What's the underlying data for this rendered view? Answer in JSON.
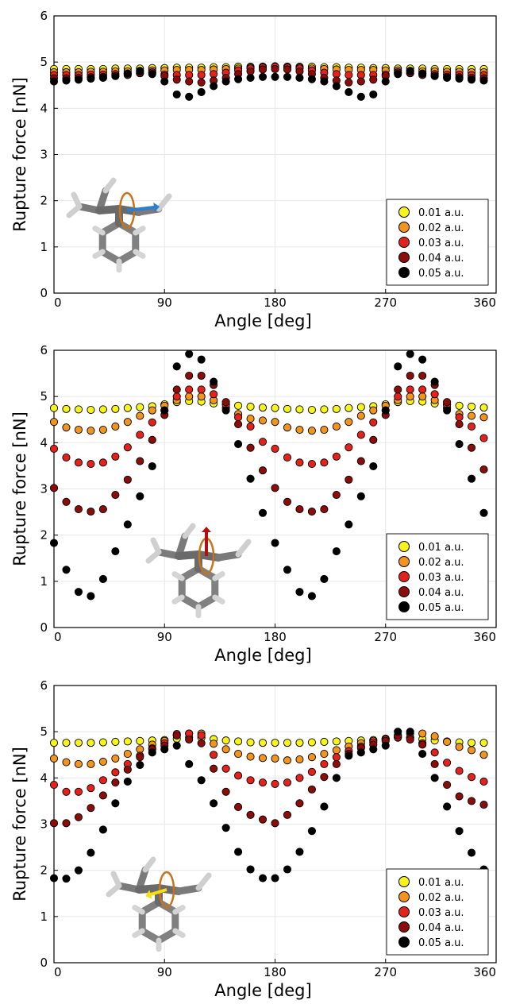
{
  "colors": {
    "0.01 a.u.": "#f7f41a",
    "0.02 a.u.": "#f3941c",
    "0.03 a.u.": "#e4221b",
    "0.04 a.u.": "#8c0c0a",
    "0.05 a.u.": "#000000",
    "axis": "#000000",
    "grid": "#e8e8e8"
  },
  "chart_data": [
    {
      "type": "scatter",
      "xlabel": "Angle [deg]",
      "ylabel": "Rupture force [nN]",
      "xlim": [
        0,
        360
      ],
      "ylim": [
        0,
        6
      ],
      "xticks": [
        "0",
        "90",
        "180",
        "270",
        "360"
      ],
      "yticks": [
        "0",
        "1",
        "2",
        "3",
        "4",
        "5",
        "6"
      ],
      "grid": true,
      "legend_position": "bottom-right",
      "inset": "molecule with rotation axis (blue arrow)",
      "x": [
        0,
        10,
        20,
        30,
        40,
        50,
        60,
        70,
        80,
        90,
        100,
        110,
        120,
        130,
        140,
        150,
        160,
        170,
        180,
        190,
        200,
        210,
        220,
        230,
        240,
        250,
        260,
        270,
        280,
        290,
        300,
        310,
        320,
        330,
        340,
        350
      ],
      "series": [
        {
          "name": "0.01 a.u.",
          "values": [
            4.85,
            4.85,
            4.85,
            4.85,
            4.85,
            4.86,
            4.86,
            4.86,
            4.87,
            4.87,
            4.88,
            4.88,
            4.88,
            4.89,
            4.89,
            4.9,
            4.9,
            4.9,
            4.9,
            4.9,
            4.9,
            4.9,
            4.89,
            4.89,
            4.88,
            4.88,
            4.87,
            4.87,
            4.86,
            4.86,
            4.86,
            4.85,
            4.85,
            4.85,
            4.85,
            4.85
          ]
        },
        {
          "name": "0.02 a.u.",
          "values": [
            4.78,
            4.78,
            4.78,
            4.79,
            4.79,
            4.8,
            4.8,
            4.81,
            4.82,
            4.82,
            4.83,
            4.83,
            4.83,
            4.84,
            4.85,
            4.86,
            4.88,
            4.9,
            4.91,
            4.9,
            4.88,
            4.86,
            4.85,
            4.84,
            4.83,
            4.83,
            4.83,
            4.82,
            4.82,
            4.81,
            4.8,
            4.8,
            4.79,
            4.79,
            4.78,
            4.78
          ]
        },
        {
          "name": "0.03 a.u.",
          "values": [
            4.72,
            4.72,
            4.72,
            4.73,
            4.73,
            4.74,
            4.75,
            4.76,
            4.77,
            4.73,
            4.72,
            4.72,
            4.72,
            4.74,
            4.77,
            4.82,
            4.86,
            4.88,
            4.9,
            4.88,
            4.86,
            4.82,
            4.77,
            4.74,
            4.72,
            4.72,
            4.72,
            4.73,
            4.77,
            4.76,
            4.75,
            4.74,
            4.73,
            4.73,
            4.72,
            4.72
          ]
        },
        {
          "name": "0.04 a.u.",
          "values": [
            4.65,
            4.65,
            4.66,
            4.67,
            4.68,
            4.7,
            4.72,
            4.76,
            4.78,
            4.7,
            4.62,
            4.58,
            4.56,
            4.6,
            4.66,
            4.74,
            4.8,
            4.84,
            4.85,
            4.84,
            4.8,
            4.74,
            4.66,
            4.6,
            4.56,
            4.58,
            4.62,
            4.7,
            4.78,
            4.76,
            4.72,
            4.7,
            4.68,
            4.67,
            4.66,
            4.65
          ]
        },
        {
          "name": "0.05 a.u.",
          "values": [
            4.58,
            4.6,
            4.62,
            4.64,
            4.66,
            4.7,
            4.75,
            4.8,
            4.74,
            4.58,
            4.3,
            4.25,
            4.35,
            4.48,
            4.58,
            4.63,
            4.66,
            4.68,
            4.68,
            4.68,
            4.66,
            4.63,
            4.58,
            4.48,
            4.35,
            4.25,
            4.3,
            4.58,
            4.74,
            4.8,
            4.75,
            4.7,
            4.66,
            4.64,
            4.62,
            4.6
          ]
        }
      ]
    },
    {
      "type": "scatter",
      "xlabel": "Angle [deg]",
      "ylabel": "Rupture force [nN]",
      "xlim": [
        0,
        360
      ],
      "ylim": [
        0,
        6
      ],
      "xticks": [
        "0",
        "90",
        "180",
        "270",
        "360"
      ],
      "yticks": [
        "0",
        "1",
        "2",
        "3",
        "4",
        "5",
        "6"
      ],
      "grid": true,
      "legend_position": "bottom-right",
      "inset": "molecule with rotation axis (red arrow)",
      "x": [
        0,
        10,
        20,
        30,
        40,
        50,
        60,
        70,
        80,
        90,
        100,
        110,
        120,
        130,
        140,
        150,
        160,
        170,
        180,
        190,
        200,
        210,
        220,
        230,
        240,
        250,
        260,
        270,
        280,
        290,
        300,
        310,
        320,
        330,
        340,
        350
      ],
      "series": [
        {
          "name": "0.01 a.u.",
          "values": [
            4.75,
            4.73,
            4.72,
            4.71,
            4.72,
            4.73,
            4.75,
            4.77,
            4.79,
            4.83,
            4.88,
            4.9,
            4.89,
            4.85,
            4.83,
            4.8,
            4.78,
            4.76,
            4.75,
            4.73,
            4.72,
            4.71,
            4.72,
            4.73,
            4.75,
            4.77,
            4.79,
            4.83,
            4.88,
            4.9,
            4.89,
            4.85,
            4.83,
            4.8,
            4.78,
            4.76
          ]
        },
        {
          "name": "0.02 a.u.",
          "values": [
            4.45,
            4.33,
            4.28,
            4.26,
            4.28,
            4.35,
            4.45,
            4.58,
            4.7,
            4.8,
            4.92,
            5.0,
            5.0,
            4.92,
            4.75,
            4.62,
            4.52,
            4.48,
            4.45,
            4.33,
            4.28,
            4.26,
            4.28,
            4.35,
            4.45,
            4.58,
            4.7,
            4.8,
            4.92,
            5.0,
            5.0,
            4.92,
            4.75,
            4.62,
            4.58,
            4.55
          ]
        },
        {
          "name": "0.03 a.u.",
          "values": [
            3.87,
            3.68,
            3.57,
            3.54,
            3.57,
            3.7,
            3.9,
            4.17,
            4.44,
            4.7,
            5.0,
            5.15,
            5.15,
            5.05,
            4.82,
            4.55,
            4.35,
            4.02,
            3.87,
            3.68,
            3.57,
            3.54,
            3.57,
            3.7,
            3.9,
            4.17,
            4.44,
            4.7,
            5.0,
            5.15,
            5.15,
            5.05,
            4.82,
            4.55,
            4.35,
            4.1
          ]
        },
        {
          "name": "0.04 a.u.",
          "values": [
            3.02,
            2.72,
            2.56,
            2.51,
            2.56,
            2.87,
            3.2,
            3.6,
            4.06,
            4.6,
            5.15,
            5.45,
            5.45,
            5.25,
            4.88,
            4.4,
            3.89,
            3.4,
            3.02,
            2.72,
            2.56,
            2.51,
            2.56,
            2.87,
            3.2,
            3.6,
            4.06,
            4.6,
            5.15,
            5.45,
            5.45,
            5.25,
            4.88,
            4.4,
            3.89,
            3.42
          ]
        },
        {
          "name": "0.05 a.u.",
          "values": [
            1.83,
            1.25,
            0.77,
            0.68,
            1.05,
            1.65,
            2.23,
            2.84,
            3.49,
            4.7,
            5.65,
            5.92,
            5.8,
            5.32,
            4.7,
            3.97,
            3.22,
            2.48,
            1.83,
            1.25,
            0.77,
            0.68,
            1.05,
            1.65,
            2.23,
            2.84,
            3.49,
            4.7,
            5.65,
            5.92,
            5.8,
            5.32,
            4.7,
            3.97,
            3.22,
            2.48
          ]
        }
      ]
    },
    {
      "type": "scatter",
      "xlabel": "Angle [deg]",
      "ylabel": "Rupture force [nN]",
      "xlim": [
        0,
        360
      ],
      "ylim": [
        0,
        6
      ],
      "xticks": [
        "0",
        "90",
        "180",
        "270",
        "360"
      ],
      "yticks": [
        "0",
        "1",
        "2",
        "3",
        "4",
        "5",
        "6"
      ],
      "grid": true,
      "legend_position": "bottom-right",
      "inset": "molecule with rotation axis (yellow arrow)",
      "x": [
        0,
        10,
        20,
        30,
        40,
        50,
        60,
        70,
        80,
        90,
        100,
        110,
        120,
        130,
        140,
        150,
        160,
        170,
        180,
        190,
        200,
        210,
        220,
        230,
        240,
        250,
        260,
        270,
        280,
        290,
        300,
        310,
        320,
        330,
        340,
        350
      ],
      "series": [
        {
          "name": "0.01 a.u.",
          "values": [
            4.76,
            4.76,
            4.76,
            4.76,
            4.77,
            4.78,
            4.79,
            4.8,
            4.81,
            4.82,
            4.85,
            4.87,
            4.87,
            4.84,
            4.81,
            4.79,
            4.77,
            4.76,
            4.76,
            4.76,
            4.76,
            4.77,
            4.78,
            4.79,
            4.8,
            4.81,
            4.82,
            4.85,
            4.87,
            4.87,
            4.84,
            4.81,
            4.79,
            4.77,
            4.76,
            4.76
          ]
        },
        {
          "name": "0.02 a.u.",
          "values": [
            4.42,
            4.34,
            4.3,
            4.3,
            4.35,
            4.42,
            4.52,
            4.62,
            4.72,
            4.8,
            4.92,
            4.96,
            4.96,
            4.74,
            4.62,
            4.52,
            4.46,
            4.43,
            4.42,
            4.38,
            4.4,
            4.45,
            4.52,
            4.6,
            4.68,
            4.75,
            4.8,
            4.85,
            4.92,
            4.96,
            4.96,
            4.9,
            4.78,
            4.67,
            4.6,
            4.5
          ]
        },
        {
          "name": "0.03 a.u.",
          "values": [
            3.85,
            3.7,
            3.7,
            3.78,
            3.95,
            4.12,
            4.3,
            4.48,
            4.64,
            4.75,
            4.95,
            4.96,
            4.92,
            4.5,
            4.2,
            4.05,
            3.95,
            3.9,
            3.87,
            3.9,
            4.0,
            4.13,
            4.3,
            4.45,
            4.58,
            4.68,
            4.77,
            4.83,
            4.88,
            4.87,
            4.75,
            4.55,
            4.33,
            4.15,
            4.02,
            3.92
          ]
        },
        {
          "name": "0.04 a.u.",
          "values": [
            3.02,
            3.02,
            3.15,
            3.35,
            3.62,
            3.9,
            4.18,
            4.45,
            4.62,
            4.7,
            4.92,
            4.83,
            4.75,
            4.2,
            3.7,
            3.37,
            3.2,
            3.1,
            3.02,
            3.2,
            3.45,
            3.75,
            4.02,
            4.3,
            4.52,
            4.65,
            4.72,
            4.8,
            4.92,
            4.83,
            4.72,
            4.3,
            3.85,
            3.6,
            3.5,
            3.42
          ]
        },
        {
          "name": "0.05 a.u.",
          "values": [
            1.83,
            1.82,
            2.0,
            2.38,
            2.88,
            3.45,
            3.92,
            4.28,
            4.55,
            4.62,
            4.7,
            4.3,
            3.95,
            3.45,
            2.92,
            2.4,
            2.02,
            1.83,
            1.83,
            2.02,
            2.4,
            2.85,
            3.38,
            4.0,
            4.48,
            4.55,
            4.62,
            4.7,
            5.0,
            5.0,
            4.52,
            4.0,
            3.38,
            2.85,
            2.38,
            2.02
          ]
        }
      ]
    }
  ]
}
